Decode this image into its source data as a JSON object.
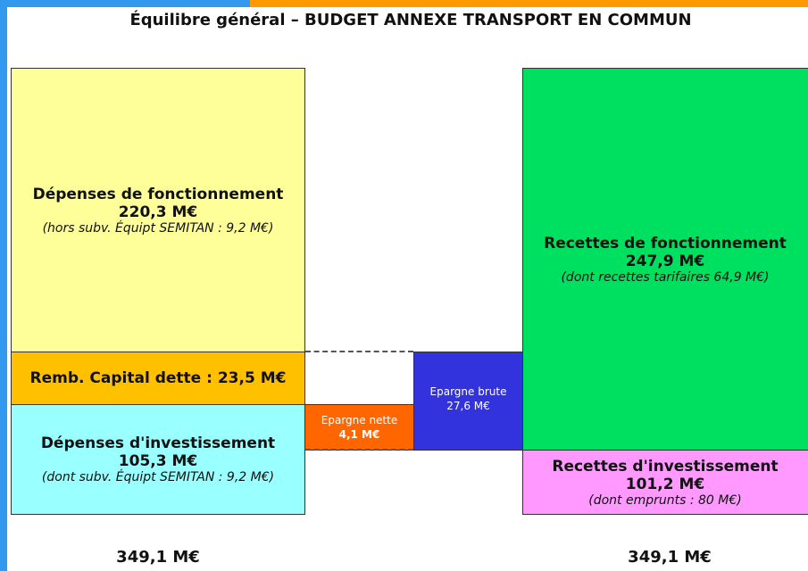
{
  "title": "Équilibre général – BUDGET ANNEXE TRANSPORT EN COMMUN",
  "blocks": [
    {
      "label": "Dépenses de fonctionnement",
      "amount": "220,3 M€",
      "note": "(hors subv. Équipt SEMITAN : 9,2 M€)"
    },
    {
      "label": "Remb. Capital dette : 23,5 M€"
    },
    {
      "label": "Dépenses d'investissement",
      "amount": "105,3 M€",
      "note": "(dont subv. Équipt SEMITAN : 9,2 M€)"
    },
    {
      "label": "Epargne nette",
      "amount": "4,1 M€"
    },
    {
      "label": "Epargne brute",
      "amount": "27,6 M€"
    },
    {
      "label": "Recettes de fonctionnement",
      "amount": "247,9 M€",
      "note": "(dont recettes tarifaires 64,9 M€)"
    },
    {
      "label": "Recettes d'investissement",
      "amount": "101,2 M€",
      "note": "(dont emprunts : 80 M€)"
    }
  ],
  "totals": [
    "349,1 M€",
    "349,1 M€"
  ]
}
